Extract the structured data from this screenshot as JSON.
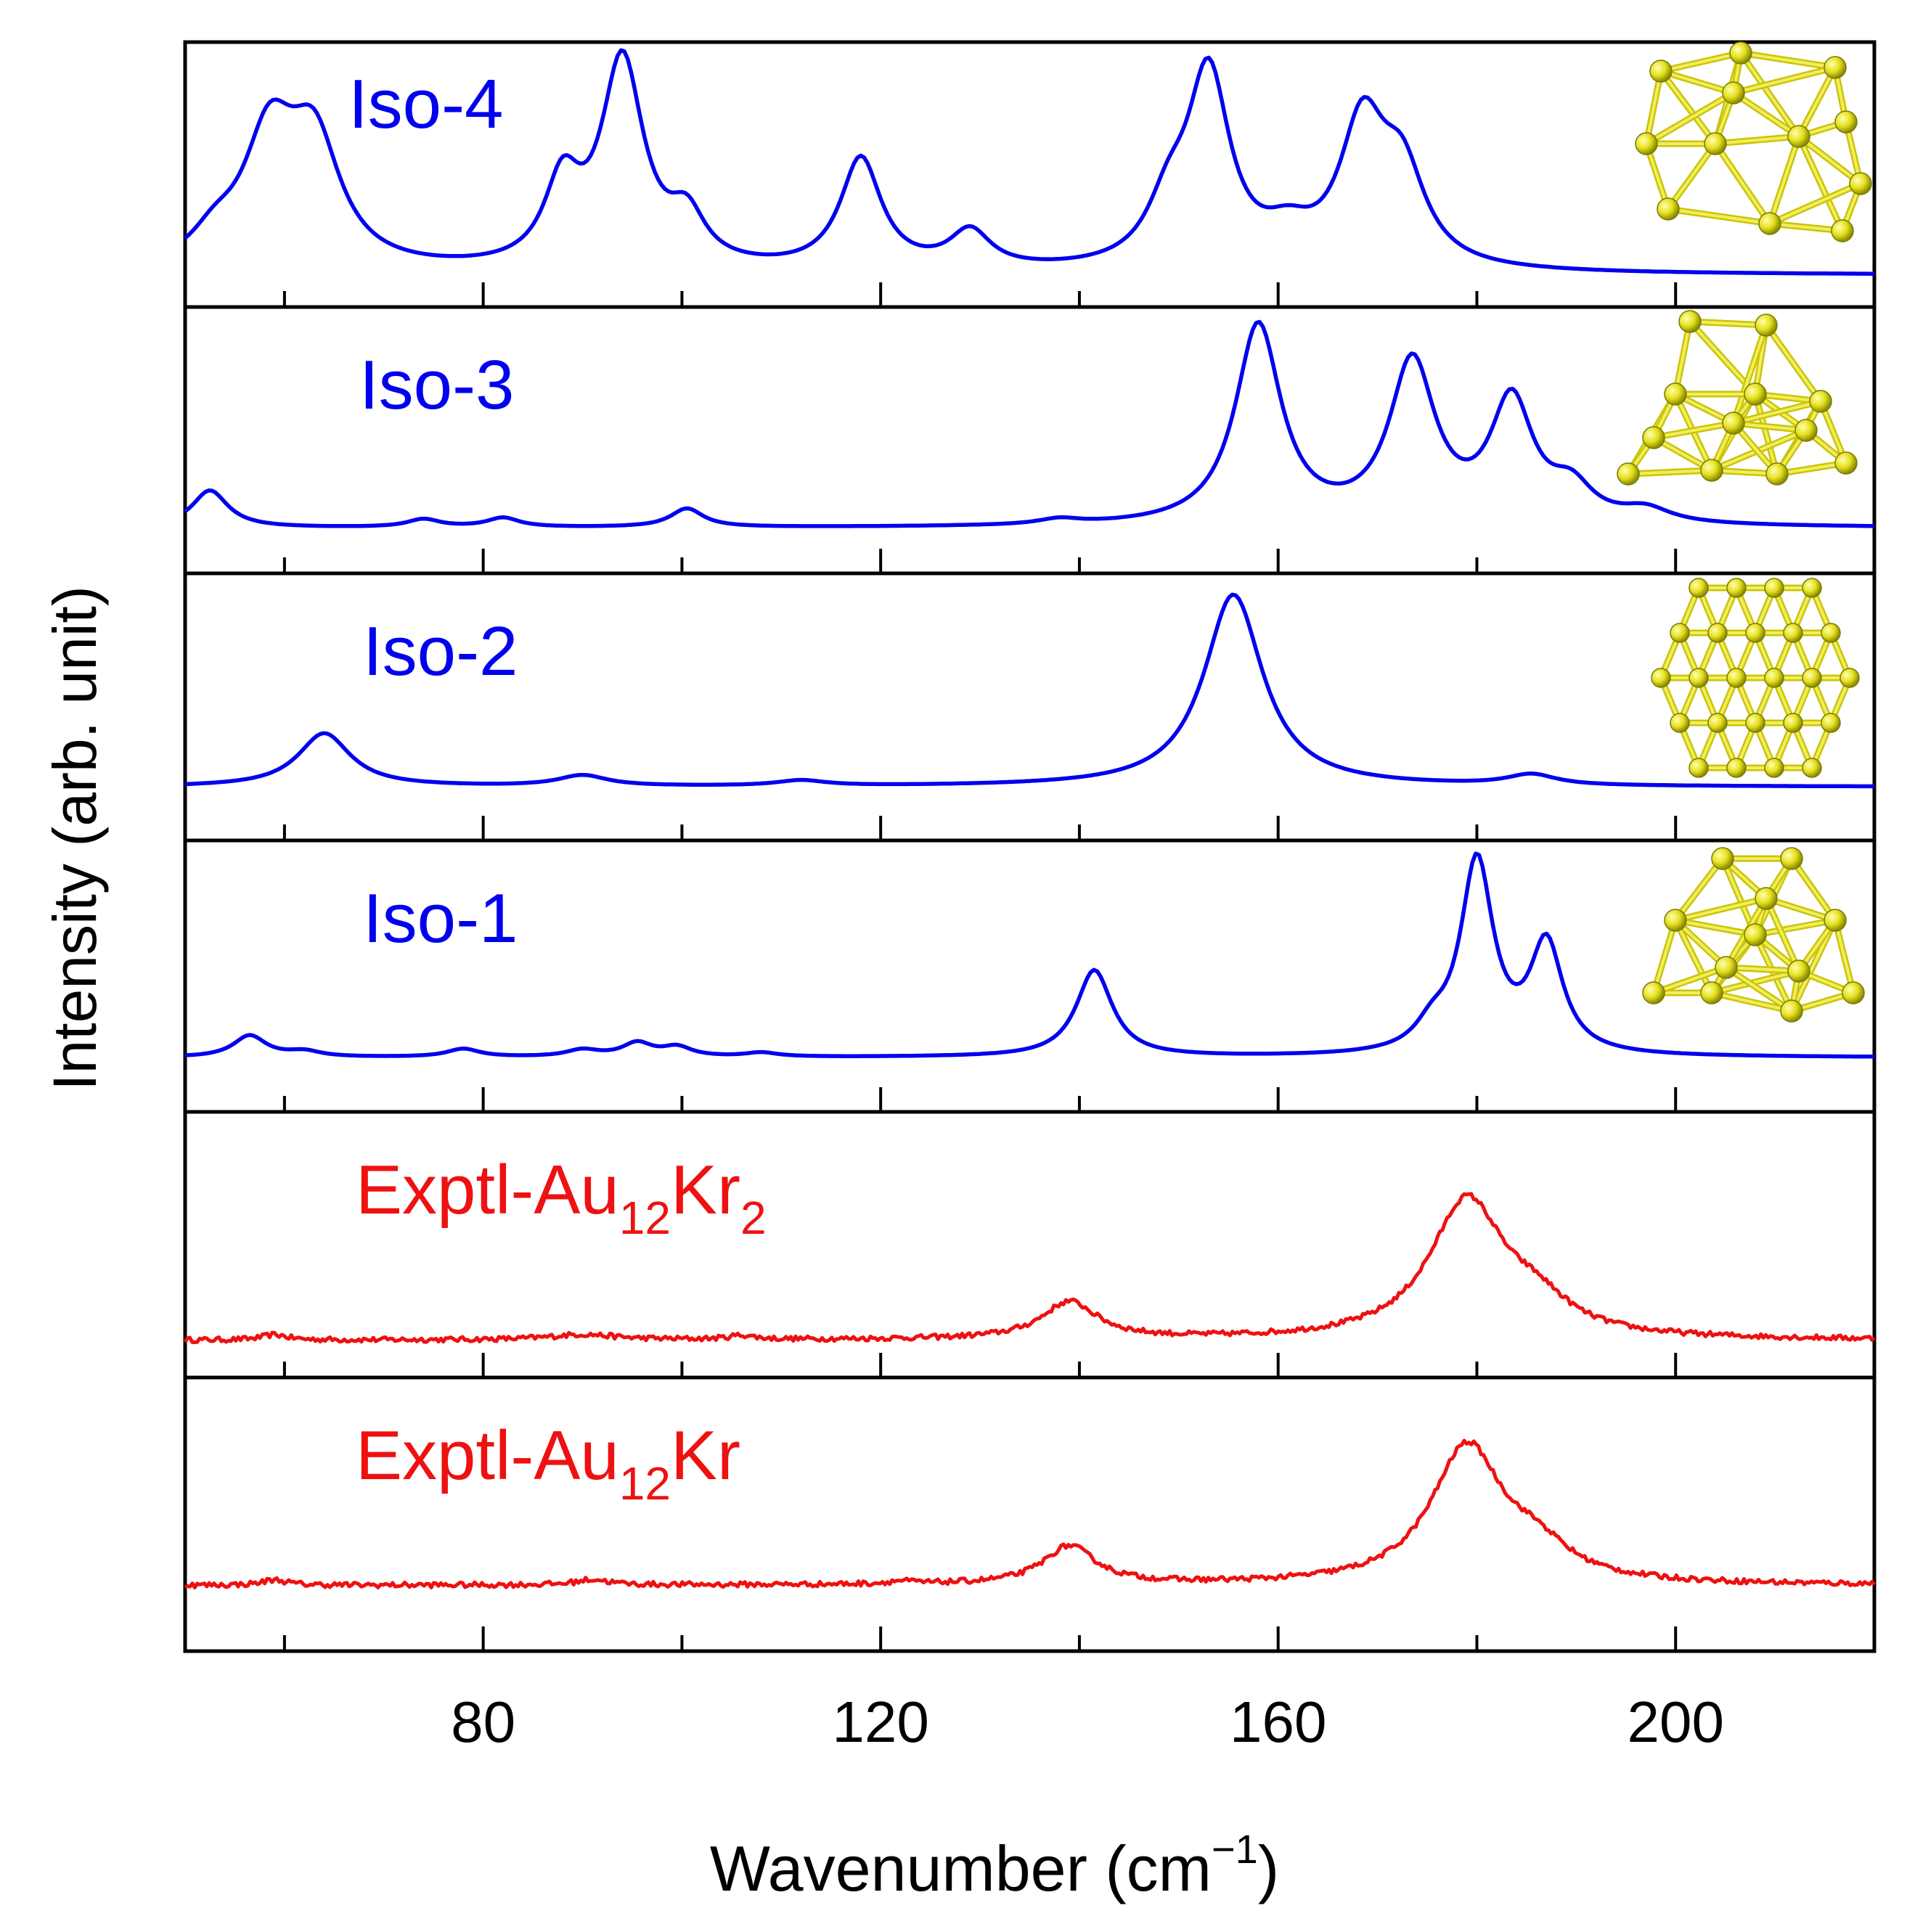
{
  "chart_data": {
    "type": "line",
    "layout": "stacked panels",
    "xlabel": "Wavenumber (cm",
    "xlabel_sup": "−1",
    "xlabel_close": ")",
    "ylabel": "Intensity (arb. unit)",
    "xlim": [
      50,
      220
    ],
    "ylim": [
      0,
      1
    ],
    "xticks": [
      80,
      120,
      160,
      200
    ],
    "minor_xticks": [
      60,
      100,
      140,
      180
    ],
    "grid": false,
    "panels": [
      {
        "name": "Iso-4",
        "label": "Iso-4",
        "color": "#0000ee",
        "kind": "computed",
        "baseline": 0.12,
        "peaks": [
          [
            53,
            0.1,
            3
          ],
          [
            58.5,
            0.47,
            3.2
          ],
          [
            63,
            0.45,
            3.2
          ],
          [
            88,
            0.3,
            2.2
          ],
          [
            94,
            0.78,
            2.6
          ],
          [
            100.5,
            0.17,
            2.2
          ],
          [
            118,
            0.42,
            2.5
          ],
          [
            129,
            0.14,
            2.5
          ],
          [
            149,
            0.2,
            2.6
          ],
          [
            153,
            0.72,
            2.6
          ],
          [
            161,
            0.1,
            3
          ],
          [
            168.5,
            0.52,
            2.8
          ],
          [
            172.5,
            0.33,
            2.8
          ]
        ],
        "inset_icon": "au12-cluster-isomer-4"
      },
      {
        "name": "Iso-3",
        "label": "Iso-3",
        "color": "#0000ee",
        "kind": "computed",
        "baseline": 0.17,
        "peaks": [
          [
            52.5,
            0.14,
            2.2
          ],
          [
            74,
            0.03,
            2
          ],
          [
            82,
            0.035,
            2
          ],
          [
            100.5,
            0.07,
            2
          ],
          [
            138,
            0.02,
            2.5
          ],
          [
            158,
            0.75,
            2.8
          ],
          [
            173.5,
            0.6,
            2.8
          ],
          [
            183.5,
            0.45,
            2.6
          ],
          [
            189.5,
            0.12,
            2.6
          ],
          [
            197,
            0.05,
            3
          ]
        ],
        "inset_icon": "au12-cluster-isomer-3"
      },
      {
        "name": "Iso-2",
        "label": "Iso-2",
        "color": "#0000ee",
        "kind": "computed",
        "baseline": 0.2,
        "peaks": [
          [
            64,
            0.2,
            3.2
          ],
          [
            90,
            0.04,
            3
          ],
          [
            112,
            0.02,
            3
          ],
          [
            155.5,
            0.72,
            3.6
          ],
          [
            185.5,
            0.04,
            3
          ]
        ],
        "inset_icon": "au12-cluster-isomer-2"
      },
      {
        "name": "Iso-1",
        "label": "Iso-1",
        "color": "#0000ee",
        "kind": "computed",
        "baseline": 0.2,
        "peaks": [
          [
            56.5,
            0.08,
            2
          ],
          [
            62,
            0.02,
            2
          ],
          [
            78,
            0.03,
            2
          ],
          [
            90,
            0.025,
            2
          ],
          [
            95.5,
            0.05,
            1.8
          ],
          [
            99.5,
            0.035,
            1.8
          ],
          [
            108,
            0.015,
            2
          ],
          [
            141.5,
            0.32,
            2.2
          ],
          [
            175.5,
            0.08,
            2
          ],
          [
            180,
            0.71,
            2
          ],
          [
            187,
            0.4,
            2
          ]
        ],
        "inset_icon": "au12-cluster-isomer-1"
      },
      {
        "name": "Exptl-Au12Kr2",
        "label_main": "Exptl-Au",
        "label_sub1": "12",
        "label_mid": "Kr",
        "label_sub2": "2",
        "color": "#ee1111",
        "kind": "experimental",
        "baseline": 0.14,
        "noise": 0.012,
        "peaks": [
          [
            59,
            0.02,
            1.5
          ],
          [
            90,
            0.02,
            4
          ],
          [
            106,
            0.015,
            1.5
          ],
          [
            139,
            0.14,
            3.4
          ],
          [
            179,
            0.52,
            4.6
          ],
          [
            186,
            0.1,
            4
          ]
        ]
      },
      {
        "name": "Exptl-Au12Kr",
        "label_main": "Exptl-Au",
        "label_sub1": "12",
        "label_mid": "Kr",
        "label_sub2": "",
        "color": "#ee1111",
        "kind": "experimental",
        "baseline": 0.24,
        "noise": 0.012,
        "peaks": [
          [
            59,
            0.02,
            1.5
          ],
          [
            91,
            0.02,
            2
          ],
          [
            122,
            0.01,
            1.5
          ],
          [
            139,
            0.14,
            3.2
          ],
          [
            179,
            0.5,
            4.4
          ],
          [
            186,
            0.1,
            4
          ]
        ]
      }
    ]
  }
}
